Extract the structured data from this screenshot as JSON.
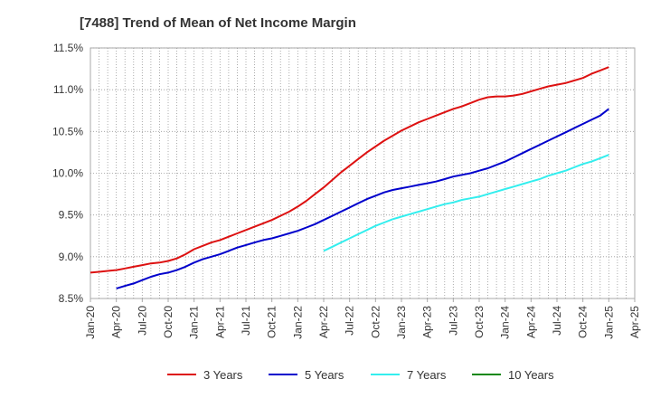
{
  "chart_data": {
    "type": "line",
    "title": "[7488]  Trend of Mean of Net Income Margin",
    "xlabel": "",
    "ylabel": "",
    "x_ticks": [
      "Jan-20",
      "Apr-20",
      "Jul-20",
      "Oct-20",
      "Jan-21",
      "Apr-21",
      "Jul-21",
      "Oct-21",
      "Jan-22",
      "Apr-22",
      "Jul-22",
      "Oct-22",
      "Jan-23",
      "Apr-23",
      "Jul-23",
      "Oct-23",
      "Jan-24",
      "Apr-24",
      "Jul-24",
      "Oct-24",
      "Jan-25",
      "Apr-25"
    ],
    "y_ticks": [
      "8.5%",
      "9.0%",
      "9.5%",
      "10.0%",
      "10.5%",
      "11.0%",
      "11.5%"
    ],
    "y_tick_values": [
      8.5,
      9.0,
      9.5,
      10.0,
      10.5,
      11.0,
      11.5
    ],
    "ylim": [
      8.5,
      11.5
    ],
    "grid": true,
    "legend_position": "bottom",
    "series": [
      {
        "name": "3 Years",
        "color": "#dd1111",
        "x": [
          "Jan-20",
          "Feb-20",
          "Mar-20",
          "Apr-20",
          "May-20",
          "Jun-20",
          "Jul-20",
          "Aug-20",
          "Sep-20",
          "Oct-20",
          "Nov-20",
          "Dec-20",
          "Jan-21",
          "Feb-21",
          "Mar-21",
          "Apr-21",
          "May-21",
          "Jun-21",
          "Jul-21",
          "Aug-21",
          "Sep-21",
          "Oct-21",
          "Nov-21",
          "Dec-21",
          "Jan-22",
          "Feb-22",
          "Mar-22",
          "Apr-22",
          "May-22",
          "Jun-22",
          "Jul-22",
          "Aug-22",
          "Sep-22",
          "Oct-22",
          "Nov-22",
          "Dec-22",
          "Jan-23",
          "Feb-23",
          "Mar-23",
          "Apr-23",
          "May-23",
          "Jun-23",
          "Jul-23",
          "Aug-23",
          "Sep-23",
          "Oct-23",
          "Nov-23",
          "Dec-23",
          "Jan-24",
          "Feb-24",
          "Mar-24",
          "Apr-24",
          "May-24",
          "Jun-24",
          "Jul-24",
          "Aug-24",
          "Sep-24",
          "Oct-24",
          "Nov-24",
          "Dec-24",
          "Jan-25"
        ],
        "values": [
          8.81,
          8.82,
          8.83,
          8.84,
          8.86,
          8.88,
          8.9,
          8.92,
          8.93,
          8.95,
          8.98,
          9.03,
          9.09,
          9.13,
          9.17,
          9.2,
          9.24,
          9.28,
          9.32,
          9.36,
          9.4,
          9.44,
          9.49,
          9.54,
          9.6,
          9.67,
          9.75,
          9.83,
          9.92,
          10.01,
          10.09,
          10.17,
          10.25,
          10.32,
          10.39,
          10.45,
          10.51,
          10.56,
          10.61,
          10.65,
          10.69,
          10.73,
          10.77,
          10.8,
          10.84,
          10.88,
          10.91,
          10.92,
          10.92,
          10.93,
          10.95,
          10.98,
          11.01,
          11.04,
          11.06,
          11.08,
          11.11,
          11.14,
          11.19,
          11.23,
          11.27
        ]
      },
      {
        "name": "5 Years",
        "color": "#0000cc",
        "x": [
          "Apr-20",
          "May-20",
          "Jun-20",
          "Jul-20",
          "Aug-20",
          "Sep-20",
          "Oct-20",
          "Nov-20",
          "Dec-20",
          "Jan-21",
          "Feb-21",
          "Mar-21",
          "Apr-21",
          "May-21",
          "Jun-21",
          "Jul-21",
          "Aug-21",
          "Sep-21",
          "Oct-21",
          "Nov-21",
          "Dec-21",
          "Jan-22",
          "Feb-22",
          "Mar-22",
          "Apr-22",
          "May-22",
          "Jun-22",
          "Jul-22",
          "Aug-22",
          "Sep-22",
          "Oct-22",
          "Nov-22",
          "Dec-22",
          "Jan-23",
          "Feb-23",
          "Mar-23",
          "Apr-23",
          "May-23",
          "Jun-23",
          "Jul-23",
          "Aug-23",
          "Sep-23",
          "Oct-23",
          "Nov-23",
          "Dec-23",
          "Jan-24",
          "Feb-24",
          "Mar-24",
          "Apr-24",
          "May-24",
          "Jun-24",
          "Jul-24",
          "Aug-24",
          "Sep-24",
          "Oct-24",
          "Nov-24",
          "Dec-24",
          "Jan-25"
        ],
        "values": [
          8.62,
          8.65,
          8.68,
          8.72,
          8.76,
          8.79,
          8.81,
          8.84,
          8.88,
          8.93,
          8.97,
          9.0,
          9.03,
          9.07,
          9.11,
          9.14,
          9.17,
          9.2,
          9.22,
          9.25,
          9.28,
          9.31,
          9.35,
          9.39,
          9.44,
          9.49,
          9.54,
          9.59,
          9.64,
          9.69,
          9.73,
          9.77,
          9.8,
          9.82,
          9.84,
          9.86,
          9.88,
          9.9,
          9.93,
          9.96,
          9.98,
          10.0,
          10.03,
          10.06,
          10.1,
          10.14,
          10.19,
          10.24,
          10.29,
          10.34,
          10.39,
          10.44,
          10.49,
          10.54,
          10.59,
          10.64,
          10.69,
          10.77
        ]
      },
      {
        "name": "7 Years",
        "color": "#33eeee",
        "x": [
          "Apr-22",
          "May-22",
          "Jun-22",
          "Jul-22",
          "Aug-22",
          "Sep-22",
          "Oct-22",
          "Nov-22",
          "Dec-22",
          "Jan-23",
          "Feb-23",
          "Mar-23",
          "Apr-23",
          "May-23",
          "Jun-23",
          "Jul-23",
          "Aug-23",
          "Sep-23",
          "Oct-23",
          "Nov-23",
          "Dec-23",
          "Jan-24",
          "Feb-24",
          "Mar-24",
          "Apr-24",
          "May-24",
          "Jun-24",
          "Jul-24",
          "Aug-24",
          "Sep-24",
          "Oct-24",
          "Nov-24",
          "Dec-24",
          "Jan-25"
        ],
        "values": [
          9.07,
          9.12,
          9.17,
          9.22,
          9.27,
          9.32,
          9.37,
          9.41,
          9.45,
          9.48,
          9.51,
          9.54,
          9.57,
          9.6,
          9.63,
          9.65,
          9.68,
          9.7,
          9.72,
          9.75,
          9.78,
          9.81,
          9.84,
          9.87,
          9.9,
          9.93,
          9.97,
          10.0,
          10.03,
          10.07,
          10.11,
          10.14,
          10.18,
          10.22
        ]
      },
      {
        "name": "10 Years",
        "color": "#118811",
        "x": [],
        "values": []
      }
    ]
  }
}
